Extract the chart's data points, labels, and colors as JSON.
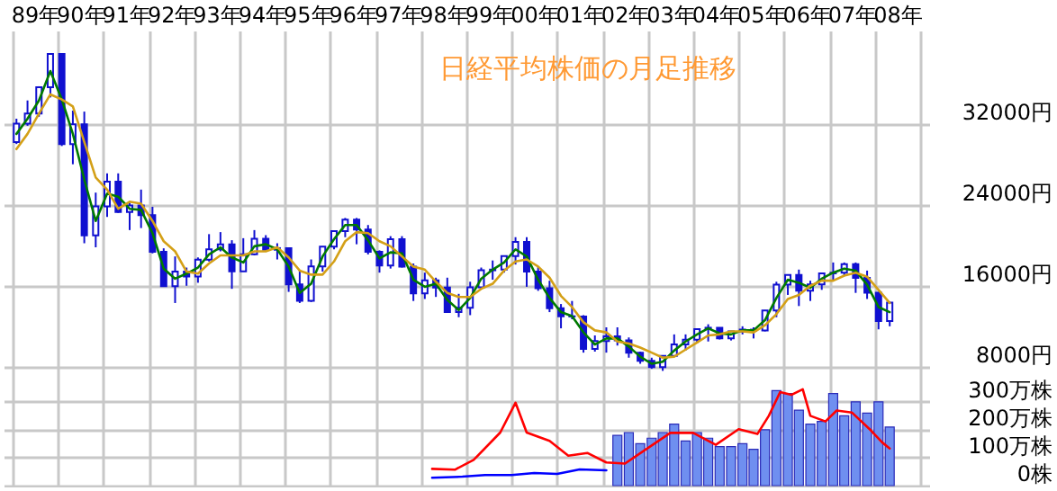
{
  "chart_data": {
    "type": "candlestick",
    "title": "日経平均株価の月足推移",
    "color": "#1010d0",
    "grid": true,
    "x": [
      "1989-02",
      "1989-05",
      "1989-08",
      "1989-11",
      "1990-02",
      "1990-05",
      "1990-08",
      "1990-11",
      "1991-02",
      "1991-05",
      "1991-08",
      "1991-11",
      "1992-02",
      "1992-05",
      "1992-08",
      "1992-11",
      "1993-02",
      "1993-05",
      "1993-08",
      "1993-11",
      "1994-02",
      "1994-05",
      "1994-08",
      "1994-11",
      "1995-02",
      "1995-05",
      "1995-08",
      "1995-11",
      "1996-02",
      "1996-05",
      "1996-08",
      "1996-11",
      "1997-02",
      "1997-05",
      "1997-08",
      "1997-11",
      "1998-02",
      "1998-05",
      "1998-08",
      "1998-11",
      "1999-02",
      "1999-05",
      "1999-08",
      "1999-11",
      "2000-02",
      "2000-05",
      "2000-08",
      "2000-11",
      "2001-02",
      "2001-05",
      "2001-08",
      "2001-11",
      "2002-02",
      "2002-05",
      "2002-08",
      "2002-11",
      "2003-02",
      "2003-05",
      "2003-08",
      "2003-11",
      "2004-02",
      "2004-05",
      "2004-08",
      "2004-11",
      "2005-02",
      "2005-05",
      "2005-08",
      "2005-11",
      "2006-02",
      "2006-05",
      "2006-08",
      "2006-11",
      "2007-02",
      "2007-05",
      "2007-08",
      "2007-11",
      "2008-02",
      "2008-05"
    ],
    "ohlc": [
      [
        30200,
        32500,
        30000,
        32000
      ],
      [
        32000,
        34300,
        31800,
        33000
      ],
      [
        33000,
        35700,
        32700,
        35600
      ],
      [
        35600,
        38900,
        34600,
        38900
      ],
      [
        38900,
        38900,
        29800,
        29980
      ],
      [
        29980,
        33300,
        28000,
        31940
      ],
      [
        31940,
        33200,
        20200,
        20980
      ],
      [
        20980,
        25200,
        19800,
        23850
      ],
      [
        23850,
        27100,
        22800,
        26290
      ],
      [
        26290,
        27100,
        23200,
        23290
      ],
      [
        23290,
        24200,
        21500,
        23920
      ],
      [
        23920,
        25500,
        21700,
        22980
      ],
      [
        22980,
        23800,
        19200,
        19350
      ],
      [
        19350,
        19700,
        15900,
        15950
      ],
      [
        15950,
        18900,
        14300,
        17400
      ],
      [
        17400,
        17800,
        16000,
        16920
      ],
      [
        16920,
        18800,
        16300,
        18590
      ],
      [
        18590,
        21100,
        18400,
        19590
      ],
      [
        19590,
        21300,
        19400,
        20100
      ],
      [
        20100,
        20500,
        15700,
        17420
      ],
      [
        17420,
        20700,
        17400,
        19110
      ],
      [
        19110,
        21500,
        19000,
        20640
      ],
      [
        20640,
        21000,
        19500,
        19560
      ],
      [
        19560,
        20200,
        18600,
        19720
      ],
      [
        19720,
        19800,
        15400,
        16140
      ],
      [
        16140,
        17500,
        14300,
        14520
      ],
      [
        14520,
        18600,
        14400,
        17910
      ],
      [
        17910,
        19900,
        17400,
        19870
      ],
      [
        19870,
        21400,
        19600,
        21400
      ],
      [
        21400,
        22700,
        20800,
        22530
      ],
      [
        22530,
        22700,
        20100,
        21560
      ],
      [
        21560,
        22000,
        19100,
        19360
      ],
      [
        19360,
        19500,
        17300,
        18000
      ],
      [
        18000,
        20900,
        17700,
        20600
      ],
      [
        20600,
        20900,
        17800,
        17890
      ],
      [
        17890,
        18200,
        14500,
        15260
      ],
      [
        15260,
        17300,
        14700,
        16530
      ],
      [
        16530,
        16800,
        14900,
        15830
      ],
      [
        15830,
        16800,
        13400,
        13400
      ],
      [
        13400,
        15200,
        12900,
        13840
      ],
      [
        13840,
        16400,
        13100,
        15840
      ],
      [
        15840,
        17800,
        15700,
        17530
      ],
      [
        17530,
        18500,
        16600,
        17600
      ],
      [
        17600,
        19000,
        17300,
        18930
      ],
      [
        18930,
        20800,
        18100,
        20340
      ],
      [
        20340,
        20800,
        15900,
        17410
      ],
      [
        17410,
        17900,
        15500,
        15750
      ],
      [
        15750,
        16500,
        13400,
        13790
      ],
      [
        13790,
        14200,
        11800,
        12990
      ],
      [
        12990,
        14500,
        12700,
        12970
      ],
      [
        12970,
        13100,
        9400,
        9770
      ],
      [
        9770,
        11100,
        9500,
        10540
      ],
      [
        10540,
        11900,
        9400,
        11020
      ],
      [
        11020,
        11900,
        10100,
        10620
      ],
      [
        10620,
        10900,
        8900,
        9380
      ],
      [
        9380,
        9500,
        8300,
        8580
      ],
      [
        8580,
        8900,
        7800,
        7970
      ],
      [
        7970,
        9100,
        7600,
        9080
      ],
      [
        9080,
        11200,
        9000,
        10220
      ],
      [
        10220,
        11200,
        9600,
        10680
      ],
      [
        10680,
        11800,
        10300,
        11720
      ],
      [
        11720,
        12200,
        10500,
        11860
      ],
      [
        11860,
        11900,
        10700,
        10820
      ],
      [
        10820,
        11500,
        10600,
        11490
      ],
      [
        11490,
        12000,
        11200,
        11670
      ],
      [
        11670,
        11900,
        10800,
        11580
      ],
      [
        11580,
        13600,
        11500,
        13570
      ],
      [
        13570,
        16400,
        12900,
        16110
      ],
      [
        16110,
        17100,
        15100,
        17060
      ],
      [
        17060,
        17600,
        14000,
        15510
      ],
      [
        15510,
        16500,
        14500,
        16130
      ],
      [
        16130,
        17300,
        15600,
        17230
      ],
      [
        17230,
        18300,
        16600,
        17290
      ],
      [
        17290,
        18300,
        17000,
        18140
      ],
      [
        18140,
        18300,
        15300,
        16790
      ],
      [
        16790,
        17500,
        14700,
        15310
      ],
      [
        15310,
        15400,
        11700,
        12530
      ],
      [
        12530,
        14400,
        12000,
        14340
      ]
    ],
    "series": [
      {
        "type": "line",
        "color": "#007a00",
        "values": [
          31000,
          32500,
          34300,
          37200,
          34400,
          31000,
          26500,
          22400,
          25100,
          24800,
          23600,
          23500,
          21200,
          17700,
          16700,
          17200,
          17800,
          19100,
          19800,
          18800,
          18300,
          19900,
          20100,
          19600,
          17900,
          15300,
          16200,
          18900,
          20600,
          22000,
          22000,
          20500,
          18700,
          19300,
          19200,
          16600,
          15900,
          16200,
          14600,
          13600,
          14800,
          16700,
          17600,
          18300,
          19600,
          18900,
          16600,
          14800,
          13400,
          13000,
          11400,
          10200,
          10800,
          10800,
          10000,
          9000,
          8300,
          8500,
          9600,
          10500,
          11200,
          11800,
          11300,
          11200,
          11600,
          11600,
          12600,
          14800,
          16600,
          16300,
          15800,
          16700,
          17300,
          17700,
          17500,
          16100,
          13900,
          13400
        ]
      },
      {
        "type": "line",
        "color": "#d4a017",
        "values": [
          29500,
          31000,
          33000,
          34900,
          34400,
          33700,
          30200,
          26700,
          25500,
          23600,
          24300,
          24100,
          22400,
          20400,
          19400,
          17400,
          17200,
          18200,
          19000,
          19000,
          19000,
          19400,
          19400,
          19800,
          18800,
          17500,
          17100,
          17100,
          18400,
          20400,
          21300,
          21200,
          20400,
          19900,
          18900,
          17900,
          17600,
          16400,
          15300,
          14900,
          14900,
          15700,
          16200,
          17500,
          18400,
          18600,
          17900,
          16800,
          15000,
          13900,
          12400,
          11600,
          11400,
          10500,
          10300,
          9900,
          9400,
          8900,
          9000,
          9700,
          10400,
          11100,
          11200,
          11500,
          11500,
          11400,
          12100,
          13200,
          14700,
          15100,
          16000,
          16500,
          16500,
          17000,
          17300,
          16900,
          15600,
          14300
        ]
      },
      {
        "type": "bar",
        "axis": "y2",
        "color": "#6f8ff0",
        "x": [
          "2002-05",
          "2002-08",
          "2002-11",
          "2003-02",
          "2003-05",
          "2003-08",
          "2003-11",
          "2004-02",
          "2004-05",
          "2004-08",
          "2004-11",
          "2005-02",
          "2005-05",
          "2005-08",
          "2005-11",
          "2006-02",
          "2006-05",
          "2006-08",
          "2006-11",
          "2007-02",
          "2007-05",
          "2007-08",
          "2007-11",
          "2008-02",
          "2008-05"
        ],
        "values": [
          180,
          190,
          150,
          170,
          190,
          220,
          160,
          190,
          170,
          140,
          140,
          150,
          130,
          200,
          340,
          330,
          270,
          220,
          230,
          330,
          250,
          300,
          260,
          300,
          210
        ]
      },
      {
        "type": "line",
        "axis": "y2",
        "color": "#ff0000",
        "x": [
          "1998-04",
          "1998-10",
          "1999-03",
          "1999-10",
          "2000-02",
          "2000-05",
          "2000-11",
          "2001-04",
          "2001-09",
          "2002-02",
          "2002-07",
          "2003-07",
          "2004-01",
          "2004-07",
          "2005-01",
          "2005-06",
          "2005-09",
          "2005-12",
          "2006-03",
          "2006-06",
          "2006-08",
          "2006-12",
          "2007-03",
          "2007-07",
          "2007-12",
          "2008-03",
          "2008-05"
        ],
        "values": [
          60,
          57,
          92,
          190,
          297,
          190,
          160,
          107,
          117,
          83,
          79,
          189,
          189,
          146,
          202,
          185,
          250,
          335,
          325,
          345,
          250,
          230,
          269,
          262,
          198,
          155,
          133
        ]
      },
      {
        "type": "line",
        "axis": "y2",
        "color": "#0000ff",
        "x": [
          "1998-04",
          "1998-12",
          "1999-06",
          "2000-01",
          "2000-07",
          "2001-01",
          "2001-07",
          "2002-02"
        ],
        "values": [
          28,
          32,
          38,
          38,
          45,
          42,
          58,
          55
        ]
      }
    ],
    "xlim": [
      "1989-01",
      "2009-01"
    ],
    "xticks": [
      {
        "value": "1989-01",
        "label": null
      },
      {
        "value": "1989-07",
        "label": "89年"
      },
      {
        "value": "1990-01",
        "label": null
      },
      {
        "value": "1990-07",
        "label": "90年"
      },
      {
        "value": "1991-01",
        "label": null
      },
      {
        "value": "1991-07",
        "label": "91年"
      },
      {
        "value": "1992-01",
        "label": null
      },
      {
        "value": "1992-07",
        "label": "92年"
      },
      {
        "value": "1993-01",
        "label": null
      },
      {
        "value": "1993-07",
        "label": "93年"
      },
      {
        "value": "1994-01",
        "label": null
      },
      {
        "value": "1994-07",
        "label": "94年"
      },
      {
        "value": "1995-01",
        "label": null
      },
      {
        "value": "1995-07",
        "label": "95年"
      },
      {
        "value": "1996-01",
        "label": null
      },
      {
        "value": "1996-07",
        "label": "96年"
      },
      {
        "value": "1997-01",
        "label": null
      },
      {
        "value": "1997-07",
        "label": "97年"
      },
      {
        "value": "1998-01",
        "label": null
      },
      {
        "value": "1998-07",
        "label": "98年"
      },
      {
        "value": "1999-01",
        "label": null
      },
      {
        "value": "1999-07",
        "label": "99年"
      },
      {
        "value": "2000-01",
        "label": null
      },
      {
        "value": "2000-07",
        "label": "00年"
      },
      {
        "value": "2001-01",
        "label": null
      },
      {
        "value": "2001-07",
        "label": "01年"
      },
      {
        "value": "2002-01",
        "label": null
      },
      {
        "value": "2002-07",
        "label": "02年"
      },
      {
        "value": "2003-01",
        "label": null
      },
      {
        "value": "2003-07",
        "label": "03年"
      },
      {
        "value": "2004-01",
        "label": null
      },
      {
        "value": "2004-07",
        "label": "04年"
      },
      {
        "value": "2005-01",
        "label": null
      },
      {
        "value": "2005-07",
        "label": "05年"
      },
      {
        "value": "2006-01",
        "label": null
      },
      {
        "value": "2006-07",
        "label": "06年"
      },
      {
        "value": "2007-01",
        "label": null
      },
      {
        "value": "2007-07",
        "label": "07年"
      },
      {
        "value": "2008-01",
        "label": null
      },
      {
        "value": "2008-07",
        "label": "08年"
      },
      {
        "value": "2009-01",
        "label": null
      }
    ],
    "ylim": [
      -3730,
      41200
    ],
    "yticks": [
      {
        "value": 8000,
        "label": "8000円"
      },
      {
        "value": 16000,
        "label": "16000円"
      },
      {
        "value": 24000,
        "label": "24000円"
      },
      {
        "value": 32000,
        "label": "32000円"
      }
    ],
    "y2lim": [
      0,
      1630
    ],
    "y2ticks": [
      {
        "value": 0,
        "label": "0株"
      },
      {
        "value": 100,
        "label": "100万株"
      },
      {
        "value": 200,
        "label": "200万株"
      },
      {
        "value": 300,
        "label": "300万株"
      }
    ]
  }
}
